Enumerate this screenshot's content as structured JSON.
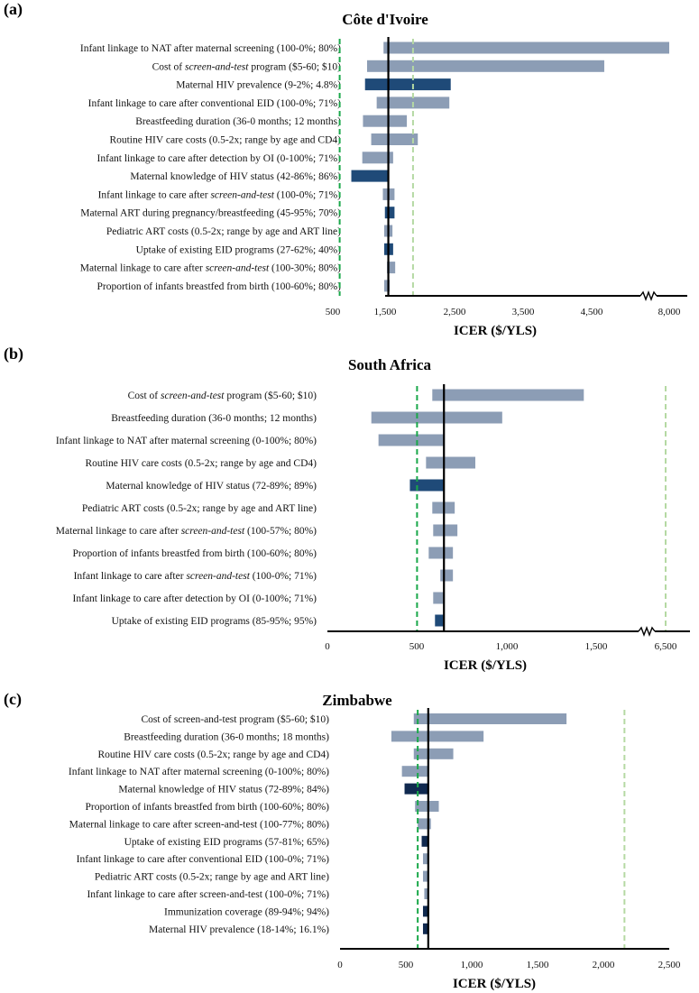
{
  "colors": {
    "light_bar": "#8c9db5",
    "dark_bar": "#1f4a78",
    "dark_bar_c": "#10294f",
    "wtp_low": "#1aa84a",
    "wtp_high": "#b5d9a3",
    "base": "#000000"
  },
  "chart_data": [
    {
      "type": "bar",
      "panel": "(a)",
      "title": "Côte d'Ivoire",
      "xlabel": "ICER ($/YLS)",
      "xticks": [
        "500",
        "1,500",
        "2,500",
        "3,500",
        "4,500",
        "8,000"
      ],
      "axis_break": true,
      "base_value": 1310,
      "wtp_lines": [
        600,
        1670
      ],
      "categories": [
        "Infant linkage to NAT after maternal screening (100-0%; 80%)",
        "Cost of screen-and-test program ($5-60; $10)",
        "Maternal HIV prevalence (9-2%; 4.8%)",
        "Infant linkage to care after conventional EID (100-0%; 71%)",
        "Breastfeeding duration (36-0 months; 12 months)",
        "Routine HIV care costs (0.5-2x; range by age and CD4)",
        "Infant linkage to care after detection by OI (0-100%; 71%)",
        "Maternal knowledge of HIV status (42-86%; 86%)",
        "Infant linkage to care after screen-and-test (100-0%; 71%)",
        "Maternal ART during pregnancy/breastfeeding (45-95%; 70%)",
        "Pediatric ART costs (0.5-2x; range by age and ART line)",
        "Uptake of existing EID programs (27-62%; 40%)",
        "Maternal linkage to care after screen-and-test (100-30%; 80%)",
        "Proportion of infants breastfed from birth (100-60%; 80%)"
      ],
      "low": [
        1240,
        1000,
        970,
        1140,
        940,
        1060,
        930,
        770,
        1230,
        1260,
        1250,
        1250,
        1290,
        1250
      ],
      "high": [
        8000,
        4460,
        2220,
        2200,
        1580,
        1740,
        1380,
        1310,
        1400,
        1400,
        1370,
        1380,
        1410,
        1330
      ],
      "dark": [
        false,
        false,
        true,
        false,
        false,
        false,
        false,
        true,
        false,
        true,
        false,
        true,
        false,
        false
      ]
    },
    {
      "type": "bar",
      "panel": "(b)",
      "title": "South Africa",
      "xlabel": "ICER ($/YLS)",
      "xticks": [
        "0",
        "500",
        "1,000",
        "1,500",
        "6,500"
      ],
      "axis_break": true,
      "base_value": 650,
      "wtp_lines": [
        500,
        6500
      ],
      "categories": [
        "Cost of screen-and-test program ($5-60; $10)",
        "Breastfeeding duration (36-0 months; 12 months)",
        "Infant linkage to NAT after maternal screening (0-100%; 80%)",
        "Routine HIV care costs (0.5-2x; range by age and CD4)",
        "Maternal knowledge of HIV status (72-89%; 89%)",
        "Pediatric ART costs (0.5-2x; range by age and ART line)",
        "Maternal linkage to care after screen-and-test (100-57%; 80%)",
        "Proportion of infants breastfed from birth (100-60%; 80%)",
        "Infant linkage to care after screen-and-test (100-0%; 71%)",
        "Infant linkage to care after detection by OI (0-100%; 71%)",
        "Uptake of existing EID programs (85-95%; 95%)"
      ],
      "low": [
        585,
        245,
        285,
        550,
        460,
        585,
        590,
        565,
        630,
        590,
        600
      ],
      "high": [
        1430,
        975,
        650,
        825,
        650,
        710,
        725,
        700,
        700,
        650,
        650
      ],
      "dark": [
        false,
        false,
        false,
        false,
        true,
        false,
        false,
        false,
        false,
        false,
        true
      ]
    },
    {
      "type": "bar",
      "panel": "(c)",
      "title": "Zimbabwe",
      "xlabel": "ICER ($/YLS)",
      "xticks": [
        "0",
        "500",
        "1,000",
        "1,500",
        "2,000",
        "2,500"
      ],
      "axis_break": false,
      "base_value": 670,
      "wtp_lines": [
        590,
        2160
      ],
      "categories": [
        "Cost of screen-and-test program ($5-60; $10)",
        "Breastfeeding duration (36-0 months; 18 months)",
        "Routine HIV care costs (0.5-2x; range by age and CD4)",
        "Infant linkage to NAT after maternal screening (0-100%; 80%)",
        "Maternal knowledge of HIV status (72-89%; 84%)",
        "Proportion of infants breastfed from birth (100-60%; 80%)",
        "Maternal linkage to care after screen-and-test (100-77%; 80%)",
        "Uptake of existing EID programs (57-81%; 65%)",
        "Infant linkage to care after conventional EID (100-0%; 71%)",
        "Pediatric ART costs (0.5-2x; range by age and ART line)",
        "Infant linkage to care after screen-and-test (100-0%; 71%)",
        "Immunization coverage (89-94%; 94%)",
        "Maternal HIV prevalence (18-14%; 16.1%)"
      ],
      "low": [
        560,
        390,
        560,
        470,
        490,
        570,
        590,
        620,
        630,
        630,
        640,
        630,
        630
      ],
      "high": [
        1720,
        1090,
        860,
        670,
        670,
        750,
        690,
        670,
        670,
        670,
        670,
        670,
        670
      ],
      "dark": [
        false,
        false,
        false,
        false,
        true,
        false,
        false,
        true,
        false,
        false,
        false,
        true,
        true
      ]
    }
  ]
}
